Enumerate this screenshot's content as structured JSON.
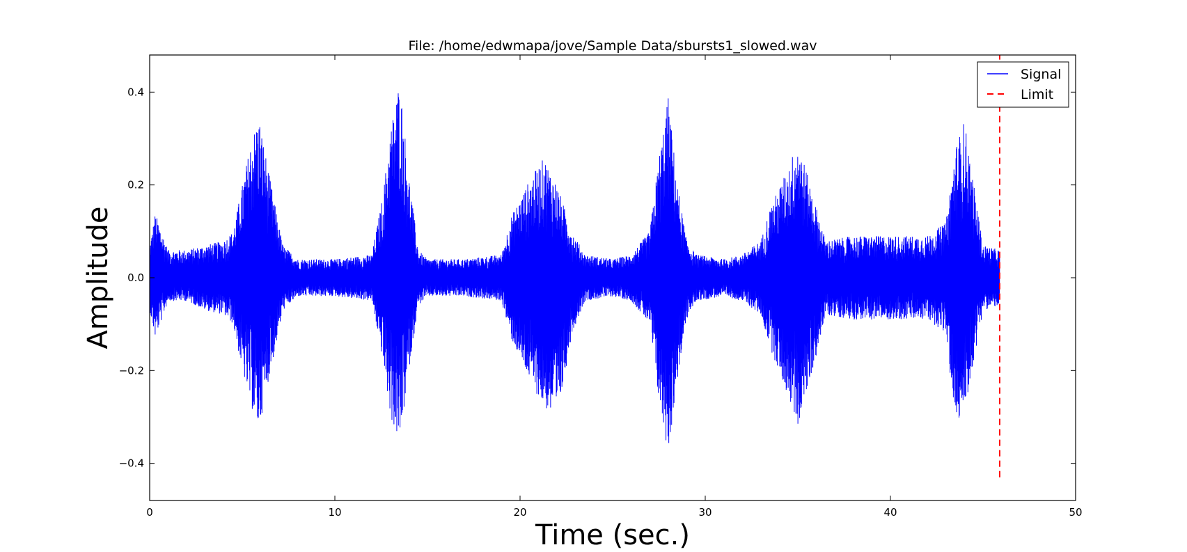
{
  "chart_data": {
    "type": "line",
    "title": "File: /home/edwmapa/jove/Sample Data/sbursts1_slowed.wav",
    "xlabel": "Time (sec.)",
    "ylabel": "Amplitude",
    "xlim": [
      0,
      50
    ],
    "ylim": [
      -0.48,
      0.48
    ],
    "xticks": [
      0,
      10,
      20,
      30,
      40,
      50
    ],
    "xtick_labels": [
      "0",
      "10",
      "20",
      "30",
      "40",
      "50"
    ],
    "yticks": [
      -0.4,
      -0.2,
      0.0,
      0.2,
      0.4
    ],
    "ytick_labels": [
      "−0.4",
      "−0.2",
      "0.0",
      "0.2",
      "0.4"
    ],
    "grid": false,
    "legend_position": "top-right",
    "series": [
      {
        "name": "Signal",
        "style": "solid",
        "color": "#0000ff",
        "description_envelope": {
          "x": [
            0,
            0.3,
            1,
            2,
            3,
            4,
            4.5,
            5,
            5.5,
            5.9,
            6.2,
            6.7,
            7.2,
            8,
            10,
            12,
            12.6,
            13,
            13.5,
            14,
            14.5,
            15,
            17,
            19,
            19.5,
            20.5,
            21.3,
            22,
            22.8,
            23.5,
            25,
            26,
            27,
            27.5,
            28,
            28.5,
            29,
            29.5,
            31,
            32,
            33,
            33.5,
            34.5,
            35,
            35.8,
            36.5,
            38,
            40,
            42,
            43,
            43.5,
            44,
            44.5,
            45,
            45.9
          ],
          "upper": [
            0.07,
            0.14,
            0.06,
            0.06,
            0.07,
            0.08,
            0.1,
            0.2,
            0.3,
            0.35,
            0.28,
            0.17,
            0.07,
            0.04,
            0.04,
            0.05,
            0.18,
            0.32,
            0.43,
            0.22,
            0.06,
            0.04,
            0.04,
            0.05,
            0.13,
            0.21,
            0.26,
            0.2,
            0.1,
            0.05,
            0.04,
            0.05,
            0.1,
            0.26,
            0.39,
            0.2,
            0.08,
            0.05,
            0.04,
            0.05,
            0.08,
            0.15,
            0.24,
            0.3,
            0.18,
            0.08,
            0.09,
            0.09,
            0.09,
            0.12,
            0.28,
            0.34,
            0.2,
            0.07,
            0.06
          ],
          "lower": [
            -0.07,
            -0.13,
            -0.05,
            -0.05,
            -0.07,
            -0.08,
            -0.1,
            -0.2,
            -0.28,
            -0.33,
            -0.26,
            -0.17,
            -0.07,
            -0.04,
            -0.04,
            -0.05,
            -0.18,
            -0.3,
            -0.36,
            -0.2,
            -0.06,
            -0.04,
            -0.04,
            -0.05,
            -0.13,
            -0.22,
            -0.28,
            -0.31,
            -0.12,
            -0.05,
            -0.04,
            -0.05,
            -0.1,
            -0.27,
            -0.38,
            -0.22,
            -0.09,
            -0.05,
            -0.04,
            -0.05,
            -0.08,
            -0.15,
            -0.26,
            -0.32,
            -0.2,
            -0.08,
            -0.09,
            -0.09,
            -0.09,
            -0.12,
            -0.32,
            -0.29,
            -0.18,
            -0.07,
            -0.06
          ]
        }
      },
      {
        "name": "Limit",
        "style": "dashed",
        "color": "#ff0000",
        "x": [
          45.9,
          45.9
        ],
        "y": [
          -0.43,
          0.48
        ]
      }
    ]
  }
}
